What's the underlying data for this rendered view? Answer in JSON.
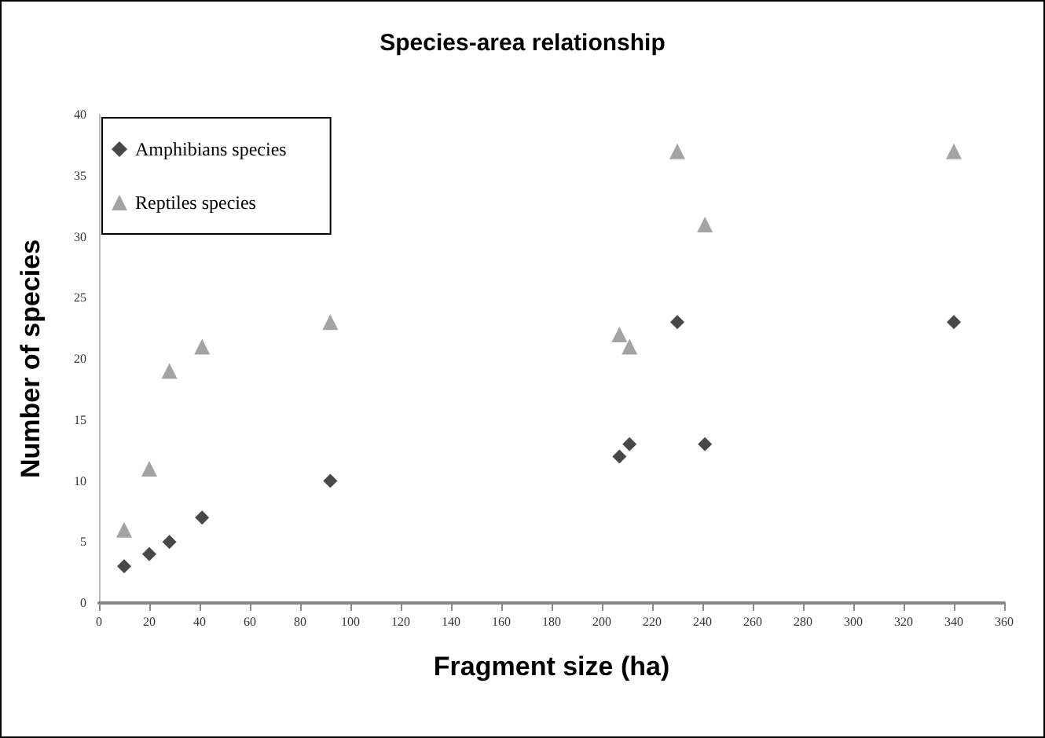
{
  "chart_data": {
    "type": "scatter",
    "title": "Species-area relationship",
    "xlabel": "Fragment size (ha)",
    "ylabel": "Number of species",
    "x": [
      10,
      20,
      28,
      41,
      92,
      207,
      211,
      230,
      241,
      340
    ],
    "series": [
      {
        "name": "Amphibians species",
        "color": "#1a1a1a",
        "marker": "diamond",
        "values": [
          3,
          4,
          5,
          7,
          10,
          12,
          13,
          23,
          13,
          23
        ]
      },
      {
        "name": "Reptiles species",
        "color": "#8c8c8c",
        "marker": "triangle",
        "values": [
          6,
          11,
          19,
          21,
          23,
          22,
          21,
          37,
          31,
          37
        ]
      }
    ],
    "xlim": [
      0,
      360
    ],
    "xticks": [
      0,
      20,
      40,
      60,
      80,
      100,
      120,
      140,
      160,
      180,
      200,
      220,
      240,
      260,
      280,
      300,
      320,
      340,
      360
    ],
    "ylim": [
      0,
      40
    ],
    "yticks": [
      0,
      5,
      10,
      15,
      20,
      25,
      30,
      35,
      40
    ],
    "grid": false,
    "legend": "top left"
  }
}
